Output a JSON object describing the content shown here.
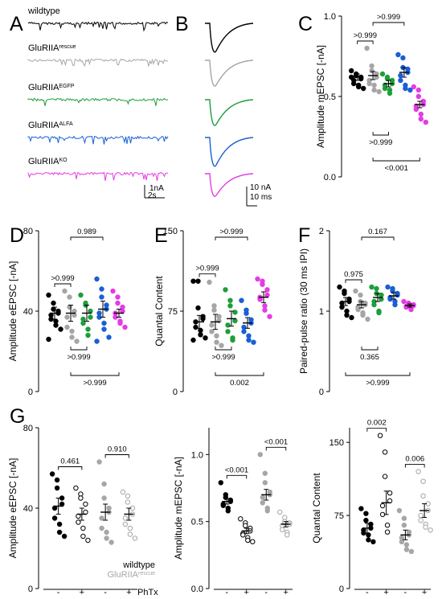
{
  "colors": {
    "wildtype": "#000000",
    "rescue": "#a6a6a6",
    "egfp": "#1e9e3a",
    "alfa": "#1a5fd6",
    "ko": "#e43ce4"
  },
  "panel_letters": [
    "A",
    "B",
    "C",
    "D",
    "E",
    "F",
    "G"
  ],
  "traces_A": {
    "genotypes": [
      {
        "label": "wildtype",
        "sup": "",
        "color": "wildtype"
      },
      {
        "label": "GluRIIA",
        "sup": "rescue",
        "color": "rescue"
      },
      {
        "label": "GluRIIA",
        "sup": "EGFP",
        "color": "egfp"
      },
      {
        "label": "GluRIIA",
        "sup": "ALFA",
        "color": "alfa"
      },
      {
        "label": "GluRIIA",
        "sup": "KO",
        "color": "ko"
      }
    ],
    "scale_y": "1nA",
    "scale_x": "2s"
  },
  "traces_B": {
    "scale_y": "10 nA",
    "scale_x": "10 ms"
  },
  "chart_data": [
    {
      "panel": "C",
      "type": "scatter",
      "ylabel": "Amplitude mEPSC [-nA]",
      "ylim": [
        0,
        1.0
      ],
      "yticks": [
        "0.0",
        "0.5",
        "1.0"
      ],
      "groups": [
        {
          "color": "wildtype",
          "mean": 0.62,
          "sem": 0.02,
          "points": [
            0.66,
            0.64,
            0.63,
            0.62,
            0.61,
            0.6,
            0.58,
            0.57,
            0.56,
            0.55,
            0.62
          ]
        },
        {
          "color": "rescue",
          "mean": 0.63,
          "sem": 0.025,
          "points": [
            0.8,
            0.69,
            0.66,
            0.64,
            0.62,
            0.6,
            0.58,
            0.57,
            0.54,
            0.53
          ]
        },
        {
          "color": "egfp",
          "mean": 0.58,
          "sem": 0.02,
          "points": [
            0.64,
            0.62,
            0.61,
            0.6,
            0.58,
            0.57,
            0.55,
            0.54,
            0.52
          ]
        },
        {
          "color": "alfa",
          "mean": 0.65,
          "sem": 0.03,
          "points": [
            0.76,
            0.74,
            0.68,
            0.67,
            0.65,
            0.63,
            0.6,
            0.57,
            0.55,
            0.54
          ]
        },
        {
          "color": "ko",
          "mean": 0.45,
          "sem": 0.02,
          "points": [
            0.56,
            0.54,
            0.5,
            0.47,
            0.45,
            0.44,
            0.42,
            0.39,
            0.36,
            0.34
          ]
        }
      ],
      "brackets": [
        {
          "g1": 0,
          "g2": 1,
          "label": ">0.999",
          "side": "top",
          "level": 0
        },
        {
          "g1": 1,
          "g2": 3,
          "label": ">0.999",
          "side": "top",
          "level": 1
        },
        {
          "g1": 1,
          "g2": 2,
          "label": ">0.999",
          "side": "bottom",
          "level": 0
        },
        {
          "g1": 1,
          "g2": 4,
          "label": "<0.001",
          "side": "bottom",
          "level": 1
        }
      ]
    },
    {
      "panel": "D",
      "type": "scatter",
      "ylabel": "Amplitude eEPSC [-nA]",
      "ylim": [
        0,
        80
      ],
      "yticks": [
        "0",
        "40",
        "80"
      ],
      "groups": [
        {
          "color": "wildtype",
          "mean": 39,
          "sem": 3,
          "points": [
            48,
            44,
            41,
            40,
            39,
            38,
            36,
            35,
            33,
            31,
            26
          ]
        },
        {
          "color": "rescue",
          "mean": 39,
          "sem": 4,
          "points": [
            50,
            47,
            42,
            40,
            38,
            37,
            32,
            30,
            27,
            25
          ]
        },
        {
          "color": "egfp",
          "mean": 39,
          "sem": 4,
          "points": [
            48,
            44,
            43,
            40,
            37,
            36,
            34,
            31,
            28
          ]
        },
        {
          "color": "alfa",
          "mean": 41,
          "sem": 4,
          "points": [
            56,
            51,
            47,
            43,
            41,
            39,
            37,
            34,
            31,
            27,
            25
          ]
        },
        {
          "color": "ko",
          "mean": 39,
          "sem": 2,
          "points": [
            50,
            47,
            44,
            42,
            40,
            39,
            37,
            35,
            34,
            32
          ]
        }
      ],
      "brackets": [
        {
          "g1": 0,
          "g2": 1,
          "label": ">0.999",
          "side": "top",
          "level": 0
        },
        {
          "g1": 1,
          "g2": 3,
          "label": "0.989",
          "side": "top",
          "level": 1
        },
        {
          "g1": 1,
          "g2": 2,
          "label": ">0.999",
          "side": "bottom",
          "level": 0
        },
        {
          "g1": 1,
          "g2": 4,
          "label": ">0.999",
          "side": "bottom",
          "level": 1
        }
      ]
    },
    {
      "panel": "E",
      "type": "scatter",
      "ylabel": "Quantal Content",
      "ylim": [
        0,
        150
      ],
      "yticks": [
        "0",
        "75",
        "150"
      ],
      "groups": [
        {
          "color": "wildtype",
          "mean": 65,
          "sem": 6,
          "points": [
            103,
            103,
            78,
            70,
            68,
            65,
            60,
            57,
            53,
            50,
            48
          ]
        },
        {
          "color": "rescue",
          "mean": 65,
          "sem": 7,
          "points": [
            102,
            80,
            76,
            70,
            66,
            62,
            56,
            52,
            46,
            43
          ]
        },
        {
          "color": "egfp",
          "mean": 68,
          "sem": 7,
          "points": [
            95,
            85,
            80,
            74,
            66,
            62,
            56,
            50,
            48
          ]
        },
        {
          "color": "alfa",
          "mean": 64,
          "sem": 5,
          "points": [
            85,
            76,
            73,
            67,
            64,
            60,
            56,
            52,
            48,
            46
          ]
        },
        {
          "color": "ko",
          "mean": 88,
          "sem": 5,
          "points": [
            105,
            103,
            100,
            95,
            90,
            88,
            86,
            80,
            76,
            70
          ]
        }
      ],
      "brackets": [
        {
          "g1": 0,
          "g2": 1,
          "label": ">0.999",
          "side": "top",
          "level": 0
        },
        {
          "g1": 1,
          "g2": 3,
          "label": ">0.999",
          "side": "top",
          "level": 1
        },
        {
          "g1": 1,
          "g2": 2,
          "label": ">0.999",
          "side": "bottom",
          "level": 0
        },
        {
          "g1": 1,
          "g2": 4,
          "label": "0.002",
          "side": "bottom",
          "level": 1
        }
      ]
    },
    {
      "panel": "F",
      "type": "scatter",
      "ylabel": "Paired-pulse ratio (30 ms IPI)",
      "ylim": [
        0,
        2
      ],
      "yticks": [
        "0",
        "1",
        "2"
      ],
      "groups": [
        {
          "color": "wildtype",
          "mean": 1.12,
          "sem": 0.05,
          "points": [
            1.3,
            1.25,
            1.22,
            1.15,
            1.12,
            1.1,
            1.05,
            1.0,
            0.95,
            0.92
          ]
        },
        {
          "color": "rescue",
          "mean": 1.08,
          "sem": 0.04,
          "points": [
            1.25,
            1.2,
            1.12,
            1.1,
            1.08,
            1.05,
            1.02,
            0.98,
            0.95,
            0.9
          ]
        },
        {
          "color": "egfp",
          "mean": 1.17,
          "sem": 0.05,
          "points": [
            1.3,
            1.28,
            1.22,
            1.2,
            1.15,
            1.12,
            1.08,
            1.0,
            0.98
          ]
        },
        {
          "color": "alfa",
          "mean": 1.19,
          "sem": 0.04,
          "points": [
            1.3,
            1.28,
            1.25,
            1.22,
            1.2,
            1.17,
            1.15,
            1.12,
            1.08
          ]
        },
        {
          "color": "ko",
          "mean": 1.07,
          "sem": 0.02,
          "points": [
            1.12,
            1.1,
            1.09,
            1.08,
            1.07,
            1.06,
            1.05,
            1.04,
            1.02
          ]
        }
      ],
      "brackets": [
        {
          "g1": 0,
          "g2": 1,
          "label": "0.975",
          "side": "top",
          "level": 0
        },
        {
          "g1": 1,
          "g2": 3,
          "label": "0.167",
          "side": "top",
          "level": 1
        },
        {
          "g1": 1,
          "g2": 2,
          "label": "0.365",
          "side": "bottom",
          "level": 0
        },
        {
          "g1": 0,
          "g2": 4,
          "label": ">0.999",
          "side": "bottom",
          "level": 1
        }
      ]
    },
    {
      "panel": "G1",
      "type": "scatter",
      "ylabel": "Amplitude eEPSC [-nA]",
      "ylim": [
        0,
        80
      ],
      "yticks": [
        "0",
        "40",
        "80"
      ],
      "xticks": [
        "-",
        "+",
        "-",
        "+"
      ],
      "xlabel": "PhTx",
      "groups": [
        {
          "color": "wildtype",
          "filled": true,
          "mean": 41,
          "sem": 4,
          "points": [
            57,
            54,
            50,
            45,
            42,
            40,
            35,
            32,
            28,
            26
          ]
        },
        {
          "color": "wildtype",
          "filled": false,
          "mean": 37,
          "sem": 3,
          "points": [
            50,
            47,
            45,
            42,
            38,
            36,
            33,
            30,
            26,
            24
          ]
        },
        {
          "color": "rescue",
          "filled": true,
          "mean": 38,
          "sem": 4,
          "points": [
            63,
            52,
            45,
            40,
            38,
            35,
            30,
            28,
            25,
            23
          ]
        },
        {
          "color": "rescue",
          "filled": false,
          "mean": 37,
          "sem": 3,
          "points": [
            48,
            46,
            43,
            40,
            37,
            35,
            32,
            30,
            27,
            25
          ]
        }
      ],
      "brackets": [
        {
          "g1": 0,
          "g2": 1,
          "label": "0.461",
          "side": "top",
          "level": 0
        },
        {
          "g1": 2,
          "g2": 3,
          "label": "0.910",
          "side": "top",
          "level": 0
        }
      ],
      "legend": [
        {
          "label": "wildtype",
          "color": "wildtype"
        },
        {
          "label": "GluRIIA",
          "sup": "rescue",
          "color": "rescue"
        }
      ]
    },
    {
      "panel": "G2",
      "type": "scatter",
      "ylabel": "Amplitude mEPSC [-nA]",
      "ylim": [
        0,
        1.2
      ],
      "yticks": [
        "0.0",
        "0.5",
        "1.0"
      ],
      "xticks": [
        "-",
        "+",
        "-",
        "+"
      ],
      "xlabel": "",
      "groups": [
        {
          "color": "wildtype",
          "filled": true,
          "mean": 0.65,
          "sem": 0.02,
          "points": [
            0.79,
            0.7,
            0.68,
            0.66,
            0.65,
            0.63,
            0.62,
            0.6,
            0.58
          ]
        },
        {
          "color": "wildtype",
          "filled": false,
          "mean": 0.43,
          "sem": 0.02,
          "points": [
            0.52,
            0.49,
            0.47,
            0.45,
            0.43,
            0.41,
            0.4,
            0.38,
            0.36,
            0.35
          ]
        },
        {
          "color": "rescue",
          "filled": true,
          "mean": 0.7,
          "sem": 0.04,
          "points": [
            1.0,
            0.86,
            0.79,
            0.72,
            0.7,
            0.68,
            0.64,
            0.6,
            0.58
          ]
        },
        {
          "color": "rescue",
          "filled": false,
          "mean": 0.48,
          "sem": 0.02,
          "points": [
            0.57,
            0.53,
            0.5,
            0.49,
            0.48,
            0.47,
            0.44,
            0.42,
            0.4
          ]
        }
      ],
      "brackets": [
        {
          "g1": 0,
          "g2": 1,
          "label": "<0.001",
          "side": "top",
          "level": 0
        },
        {
          "g1": 2,
          "g2": 3,
          "label": "<0.001",
          "side": "top",
          "level": 0
        }
      ]
    },
    {
      "panel": "G3",
      "type": "scatter",
      "ylabel": "Quantal Content",
      "ylim": [
        0,
        165
      ],
      "yticks": [
        "0",
        "75",
        "150"
      ],
      "xticks": [
        "-",
        "+",
        "-",
        "+"
      ],
      "xlabel": "",
      "groups": [
        {
          "color": "wildtype",
          "filled": true,
          "mean": 62,
          "sem": 5,
          "points": [
            82,
            77,
            70,
            66,
            62,
            60,
            57,
            55,
            50,
            48
          ]
        },
        {
          "color": "wildtype",
          "filled": false,
          "mean": 88,
          "sem": 12,
          "points": [
            157,
            140,
            115,
            98,
            90,
            85,
            76,
            65,
            58
          ]
        },
        {
          "color": "rescue",
          "filled": true,
          "mean": 55,
          "sem": 5,
          "points": [
            80,
            72,
            65,
            58,
            55,
            52,
            48,
            45,
            40,
            38
          ]
        },
        {
          "color": "rescue",
          "filled": false,
          "mean": 80,
          "sem": 7,
          "points": [
            120,
            110,
            95,
            87,
            80,
            75,
            70,
            66,
            63,
            60
          ]
        }
      ],
      "brackets": [
        {
          "g1": 0,
          "g2": 1,
          "label": "0.002",
          "side": "top",
          "level": 0
        },
        {
          "g1": 2,
          "g2": 3,
          "label": "0.006",
          "side": "top",
          "level": 0
        }
      ]
    }
  ]
}
